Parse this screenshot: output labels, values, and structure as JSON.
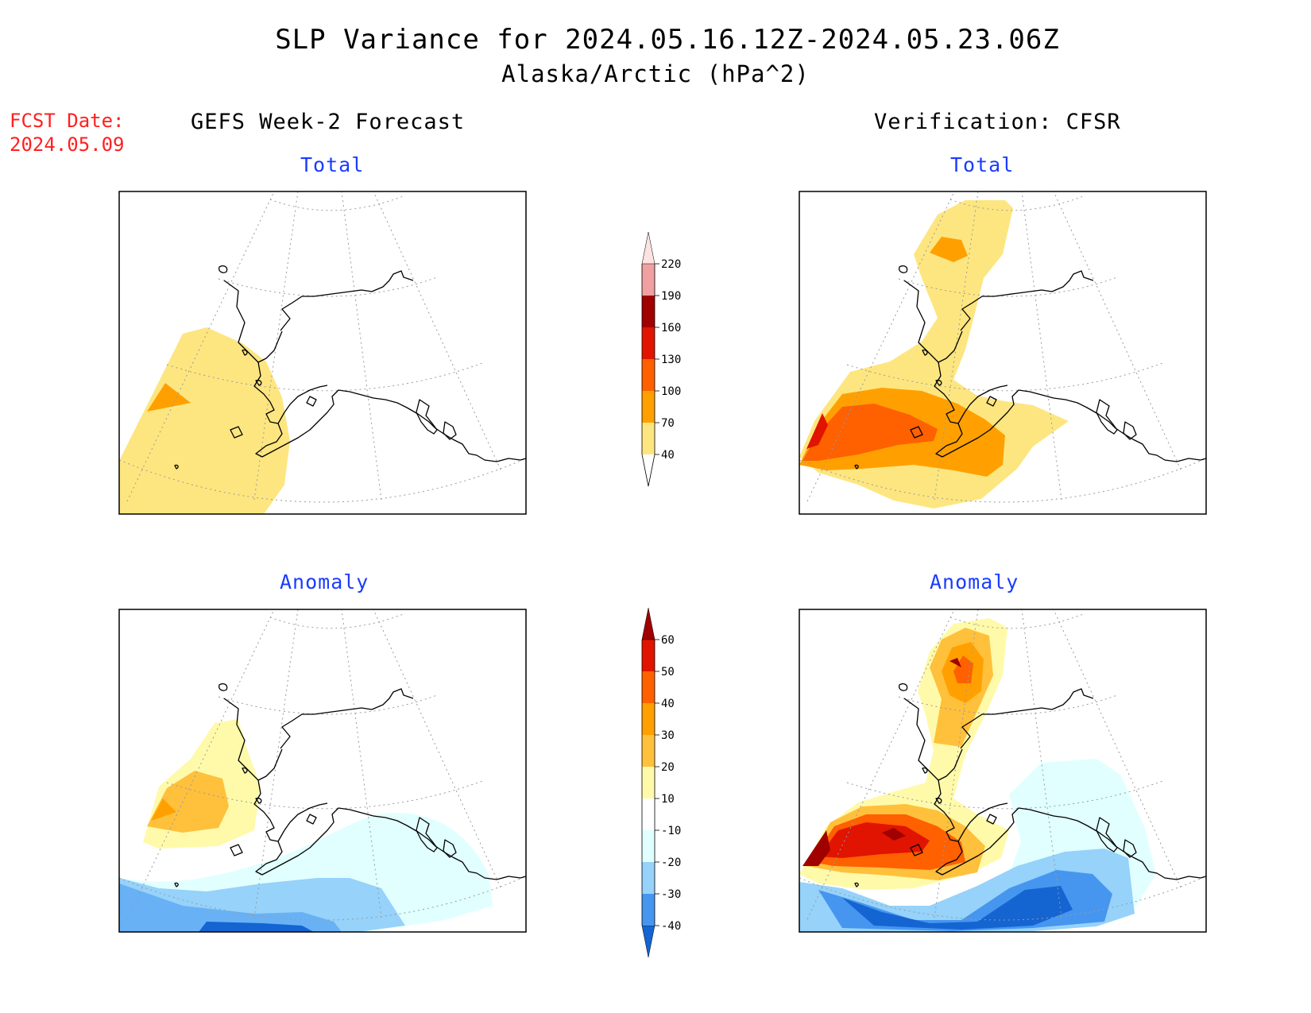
{
  "header": {
    "title": "SLP Variance for 2024.05.16.12Z-2024.05.23.06Z",
    "subtitle": "Alaska/Arctic (hPa^2)",
    "fcst_date_label": "FCST Date:",
    "fcst_date_value": "2024.05.09"
  },
  "columns": {
    "left": "GEFS Week-2 Forecast",
    "right": "Verification: CFSR"
  },
  "panels": {
    "top_left": "Total",
    "top_right": "Total",
    "bottom_left": "Anomaly",
    "bottom_right": "Anomaly"
  },
  "colorbars": {
    "total": {
      "labels": [
        "40",
        "70",
        "100",
        "130",
        "160",
        "190",
        "220"
      ],
      "colors": [
        "#fde680",
        "#ffa000",
        "#ff6000",
        "#e01400",
        "#a00000",
        "#f0a0a0",
        "#fde2e2"
      ]
    },
    "anomaly": {
      "labels": [
        "-40",
        "-30",
        "-20",
        "-10",
        "10",
        "20",
        "30",
        "40",
        "50",
        "60"
      ],
      "colors": [
        "#1464d2",
        "#4696f0",
        "#96d2fa",
        "#e1ffff",
        "#ffffff",
        "#fffaaa",
        "#ffc03c",
        "#ffa000",
        "#ff6000",
        "#e01400",
        "#a00000"
      ]
    }
  }
}
